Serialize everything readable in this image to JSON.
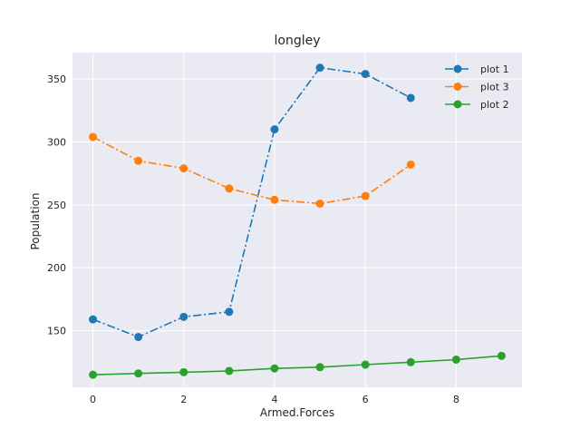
{
  "chart_data": {
    "type": "line",
    "title": "longley",
    "xlabel": "Armed.Forces",
    "ylabel": "Population",
    "xlim": [
      -0.45,
      9.45
    ],
    "ylim": [
      105,
      371
    ],
    "xticks": [
      0,
      2,
      4,
      6,
      8
    ],
    "yticks": [
      150,
      200,
      250,
      300,
      350
    ],
    "grid": true,
    "legend_position": "top-right",
    "legend_order": [
      "plot 1",
      "plot 3",
      "plot 2"
    ],
    "series": [
      {
        "name": "plot 1",
        "color": "#1f77b4",
        "linestyle": "dashdot",
        "x": [
          0,
          1,
          2,
          3,
          4,
          5,
          6,
          7
        ],
        "values": [
          159,
          145,
          161,
          165,
          310,
          359,
          354,
          335
        ]
      },
      {
        "name": "plot 2",
        "color": "#2ca02c",
        "linestyle": "solid",
        "x": [
          0,
          1,
          2,
          3,
          4,
          5,
          6,
          7,
          8,
          9
        ],
        "values": [
          115,
          116,
          117,
          118,
          120,
          121,
          123,
          125,
          127,
          130
        ]
      },
      {
        "name": "plot 3",
        "color": "#ff7f0e",
        "linestyle": "dashdot",
        "x": [
          0,
          1,
          2,
          3,
          4,
          5,
          6,
          7
        ],
        "values": [
          304,
          285,
          279,
          263,
          254,
          251,
          257,
          282
        ]
      }
    ]
  }
}
